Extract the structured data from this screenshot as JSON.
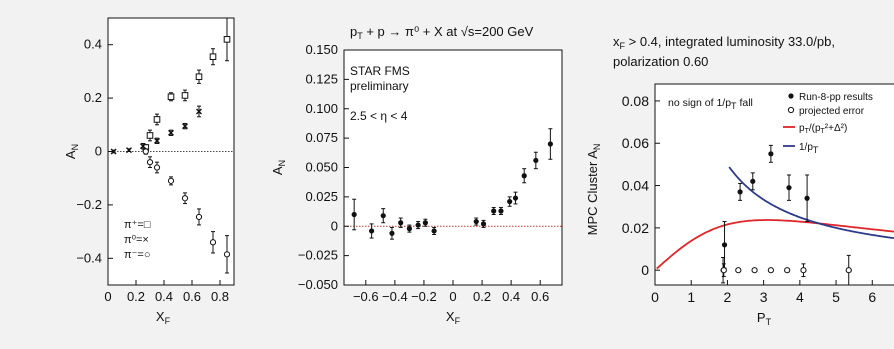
{
  "chart_data": [
    {
      "type": "scatter",
      "xlabel": "x_F",
      "ylabel": "A_N",
      "xlim": [
        0,
        0.9
      ],
      "ylim": [
        -0.5,
        0.5
      ],
      "x_ticks": [
        "0",
        "0.2",
        "0.4",
        "0.6",
        "0.8"
      ],
      "y_ticks": [
        "−0.4",
        "−0.2",
        "0",
        "0.2",
        "0.4"
      ],
      "legend": [
        "π⁺=□",
        "π⁰=×",
        "π⁻=○"
      ],
      "series": [
        {
          "name": "π⁺",
          "marker": "square",
          "points": [
            {
              "x": 0.27,
              "y": 0.015,
              "err": 0.01
            },
            {
              "x": 0.3,
              "y": 0.06,
              "err": 0.02
            },
            {
              "x": 0.35,
              "y": 0.12,
              "err": 0.02
            },
            {
              "x": 0.45,
              "y": 0.205,
              "err": 0.015
            },
            {
              "x": 0.55,
              "y": 0.21,
              "err": 0.02
            },
            {
              "x": 0.65,
              "y": 0.28,
              "err": 0.025
            },
            {
              "x": 0.75,
              "y": 0.355,
              "err": 0.03
            },
            {
              "x": 0.85,
              "y": 0.42,
              "err": 0.08
            }
          ]
        },
        {
          "name": "π⁰",
          "marker": "cross",
          "points": [
            {
              "x": 0.04,
              "y": 0.0,
              "err": 0.005
            },
            {
              "x": 0.15,
              "y": 0.005,
              "err": 0.005
            },
            {
              "x": 0.25,
              "y": 0.02,
              "err": 0.01
            },
            {
              "x": 0.35,
              "y": 0.04,
              "err": 0.01
            },
            {
              "x": 0.45,
              "y": 0.07,
              "err": 0.01
            },
            {
              "x": 0.55,
              "y": 0.095,
              "err": 0.01
            },
            {
              "x": 0.65,
              "y": 0.15,
              "err": 0.02
            }
          ]
        },
        {
          "name": "π⁻",
          "marker": "circle",
          "points": [
            {
              "x": 0.27,
              "y": 0.0,
              "err": 0.01
            },
            {
              "x": 0.3,
              "y": -0.04,
              "err": 0.02
            },
            {
              "x": 0.35,
              "y": -0.06,
              "err": 0.02
            },
            {
              "x": 0.45,
              "y": -0.11,
              "err": 0.015
            },
            {
              "x": 0.55,
              "y": -0.175,
              "err": 0.02
            },
            {
              "x": 0.65,
              "y": -0.245,
              "err": 0.03
            },
            {
              "x": 0.75,
              "y": -0.34,
              "err": 0.04
            },
            {
              "x": 0.85,
              "y": -0.385,
              "err": 0.07
            }
          ]
        }
      ]
    },
    {
      "type": "scatter",
      "title": "p_T + p → π⁰ + X at √s=200 GeV",
      "annotations": [
        "STAR FMS",
        "preliminary",
        "2.5 < η < 4"
      ],
      "xlabel": "x_F",
      "ylabel": "A_N",
      "xlim": [
        -0.75,
        0.75
      ],
      "ylim": [
        -0.05,
        0.15
      ],
      "x_ticks": [
        "−0.6",
        "−0.4",
        "−0.2",
        "0",
        "0.2",
        "0.4",
        "0.6"
      ],
      "y_ticks": [
        "0.150",
        "0.125",
        "0.100",
        "0.075",
        "0.050",
        "0.025",
        "0",
        "−0.025",
        "−0.050"
      ],
      "series": [
        {
          "name": "",
          "points": [
            {
              "x": -0.68,
              "y": 0.01,
              "err": 0.013
            },
            {
              "x": -0.56,
              "y": -0.004,
              "err": 0.006
            },
            {
              "x": -0.48,
              "y": 0.009,
              "err": 0.006
            },
            {
              "x": -0.42,
              "y": -0.006,
              "err": 0.005
            },
            {
              "x": -0.36,
              "y": 0.003,
              "err": 0.004
            },
            {
              "x": -0.3,
              "y": -0.002,
              "err": 0.003
            },
            {
              "x": -0.24,
              "y": 0.001,
              "err": 0.003
            },
            {
              "x": -0.19,
              "y": 0.003,
              "err": 0.003
            },
            {
              "x": -0.13,
              "y": -0.004,
              "err": 0.003
            },
            {
              "x": 0.16,
              "y": 0.004,
              "err": 0.003
            },
            {
              "x": 0.21,
              "y": 0.002,
              "err": 0.003
            },
            {
              "x": 0.28,
              "y": 0.013,
              "err": 0.003
            },
            {
              "x": 0.33,
              "y": 0.013,
              "err": 0.003
            },
            {
              "x": 0.39,
              "y": 0.021,
              "err": 0.004
            },
            {
              "x": 0.43,
              "y": 0.024,
              "err": 0.005
            },
            {
              "x": 0.49,
              "y": 0.043,
              "err": 0.006
            },
            {
              "x": 0.57,
              "y": 0.056,
              "err": 0.007
            },
            {
              "x": 0.67,
              "y": 0.07,
              "err": 0.013
            }
          ]
        }
      ]
    },
    {
      "type": "scatter",
      "title_lines": [
        "x_F > 0.4, integrated luminosity 33.0/pb,",
        "polarization 0.60"
      ],
      "annotation": "no sign of 1/p_T fall",
      "xlabel": "P_T",
      "ylabel": "MPC Cluster A_N",
      "xlim": [
        0,
        6.6
      ],
      "ylim": [
        -0.007,
        0.088
      ],
      "x_ticks": [
        "0",
        "1",
        "2",
        "3",
        "4",
        "5",
        "6"
      ],
      "y_ticks": [
        "0.08",
        "0.06",
        "0.04",
        "0.02",
        "0"
      ],
      "legend": [
        "Run-8-pp results",
        "projected error",
        "p_T/(p_T²+Δ²)",
        "1/p_T"
      ],
      "series": [
        {
          "name": "Run-8-pp results",
          "marker": "filled",
          "points": [
            {
              "x": 1.88,
              "y": 0.0,
              "err": 0.006
            },
            {
              "x": 1.92,
              "y": 0.012,
              "err": 0.011
            },
            {
              "x": 2.35,
              "y": 0.037,
              "err": 0.004
            },
            {
              "x": 2.7,
              "y": 0.042,
              "err": 0.004
            },
            {
              "x": 3.2,
              "y": 0.055,
              "err": 0.004
            },
            {
              "x": 3.7,
              "y": 0.039,
              "err": 0.006
            },
            {
              "x": 4.2,
              "y": 0.034,
              "err": 0.011
            }
          ]
        },
        {
          "name": "projected error",
          "marker": "open",
          "points": [
            {
              "x": 1.9,
              "y": 0.0,
              "err": 0.003
            },
            {
              "x": 2.3,
              "y": 0.0
            },
            {
              "x": 2.75,
              "y": 0.0
            },
            {
              "x": 3.2,
              "y": 0.0
            },
            {
              "x": 3.65,
              "y": 0.0
            },
            {
              "x": 4.1,
              "y": 0.0,
              "err": 0.003
            },
            {
              "x": 5.35,
              "y": 0.0,
              "err": 0.007
            }
          ]
        }
      ],
      "curves": [
        {
          "name": "p_T/(p_T²+Δ²)",
          "color": "#e0252a",
          "formula": "a*x/(x*x+d*d)",
          "a": 0.147,
          "d": 3.1,
          "x_from": 0.05,
          "x_to": 6.6
        },
        {
          "name": "1/p_T",
          "color": "#2d3a8c",
          "formula": "a/x",
          "a": 0.1,
          "x_from": 2.05,
          "x_to": 6.6
        }
      ]
    }
  ]
}
